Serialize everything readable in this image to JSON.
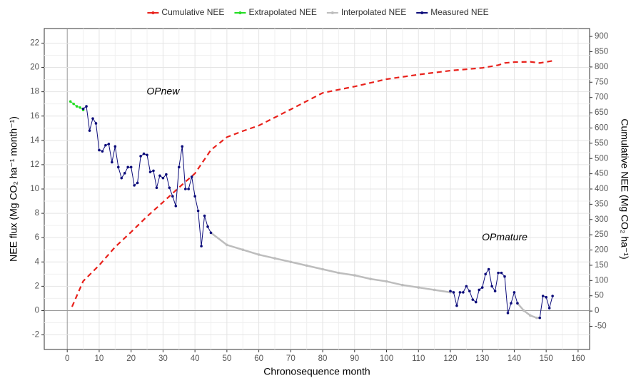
{
  "chart_data": {
    "type": "line",
    "xlabel": "Chronosequence month",
    "ylabel": "NEE flux (Mg CO₂ ha⁻¹ month⁻¹)",
    "y2label": "Cumulative NEE (Mg CO₂ ha⁻¹)",
    "annotations": [
      {
        "text": "OPnew",
        "x": 30,
        "y": 18
      },
      {
        "text": "OPmature",
        "x": 137,
        "y": 6
      }
    ],
    "xlim": [
      -7.2,
      163.6
    ],
    "ylim": [
      -3.2,
      23.2
    ],
    "y2lim": [
      -126,
      926
    ],
    "xticks": [
      0,
      10,
      20,
      30,
      40,
      50,
      60,
      70,
      80,
      90,
      100,
      110,
      120,
      130,
      140,
      150,
      160
    ],
    "yticks": [
      -2,
      0,
      2,
      4,
      6,
      8,
      10,
      12,
      14,
      16,
      18,
      20,
      22
    ],
    "y2ticks": [
      -50,
      0,
      50,
      100,
      150,
      200,
      250,
      300,
      350,
      400,
      450,
      500,
      550,
      600,
      650,
      700,
      750,
      800,
      850,
      900
    ],
    "grid": true,
    "legend": "top",
    "series": [
      {
        "name": "Cumulative NEE",
        "color": "#e8211b",
        "axis": "y2",
        "style": "dashed",
        "x": [
          1.5,
          5,
          10,
          15,
          20,
          25,
          30,
          35,
          40,
          45,
          50,
          55,
          60,
          70,
          80,
          90,
          100,
          110,
          120,
          130,
          135,
          137,
          140,
          145,
          148,
          152
        ],
        "values": [
          14,
          98,
          150,
          210,
          259,
          310,
          357,
          405,
          451,
          528,
          570,
          590,
          608,
          661,
          715,
          736,
          760,
          775,
          788,
          797,
          806,
          813,
          816,
          817,
          813,
          820
        ]
      },
      {
        "name": "Extrapolated NEE",
        "color": "#22dd22",
        "x": [
          1,
          2,
          3,
          4,
          5
        ],
        "values": [
          17.2,
          17.0,
          16.8,
          16.7,
          16.5
        ]
      },
      {
        "name": "Interpolated NEE",
        "color": "#bdbdbd",
        "x": [
          45,
          50,
          55,
          60,
          65,
          70,
          75,
          80,
          85,
          90,
          95,
          100,
          105,
          110,
          115,
          120,
          130,
          141,
          143,
          145,
          147,
          148
        ],
        "values": [
          6.4,
          5.4,
          5.0,
          4.6,
          4.3,
          4.0,
          3.7,
          3.4,
          3.1,
          2.9,
          2.6,
          2.4,
          2.1,
          1.9,
          1.7,
          1.5,
          null,
          0.6,
          0.0,
          -0.4,
          -0.6,
          -0.6
        ]
      },
      {
        "name": "Measured NEE",
        "color": "#0c0c7a",
        "x": [
          5,
          6,
          7,
          8,
          9,
          10,
          11,
          12,
          13,
          14,
          15,
          16,
          17,
          18,
          19,
          20,
          21,
          22,
          23,
          24,
          25,
          26,
          27,
          28,
          29,
          30,
          31,
          32,
          33,
          34,
          35,
          36,
          37,
          38,
          39,
          40,
          41,
          42,
          43,
          44,
          45,
          80,
          120,
          121,
          122,
          123,
          124,
          125,
          126,
          127,
          128,
          129,
          130,
          131,
          132,
          133,
          134,
          135,
          136,
          137,
          138,
          139,
          140,
          141,
          144,
          148,
          149,
          150,
          151,
          152
        ],
        "values": [
          16.6,
          16.8,
          14.8,
          15.8,
          15.4,
          13.2,
          13.1,
          13.6,
          13.7,
          12.2,
          13.5,
          11.8,
          10.9,
          11.3,
          11.8,
          11.8,
          10.3,
          10.5,
          12.7,
          12.9,
          12.8,
          11.4,
          11.5,
          10.1,
          11.1,
          10.9,
          11.2,
          10.1,
          9.4,
          8.6,
          11.8,
          13.5,
          10.0,
          10.0,
          11.0,
          9.4,
          8.2,
          5.3,
          7.8,
          6.9,
          6.4,
          null,
          1.6,
          1.5,
          0.4,
          1.5,
          1.5,
          2.0,
          1.6,
          0.9,
          0.7,
          1.7,
          1.9,
          3.0,
          3.4,
          2.0,
          1.6,
          3.1,
          3.1,
          2.8,
          -0.2,
          0.6,
          1.5,
          0.6,
          null,
          -0.6,
          1.2,
          1.1,
          0.2,
          1.2
        ]
      }
    ]
  }
}
